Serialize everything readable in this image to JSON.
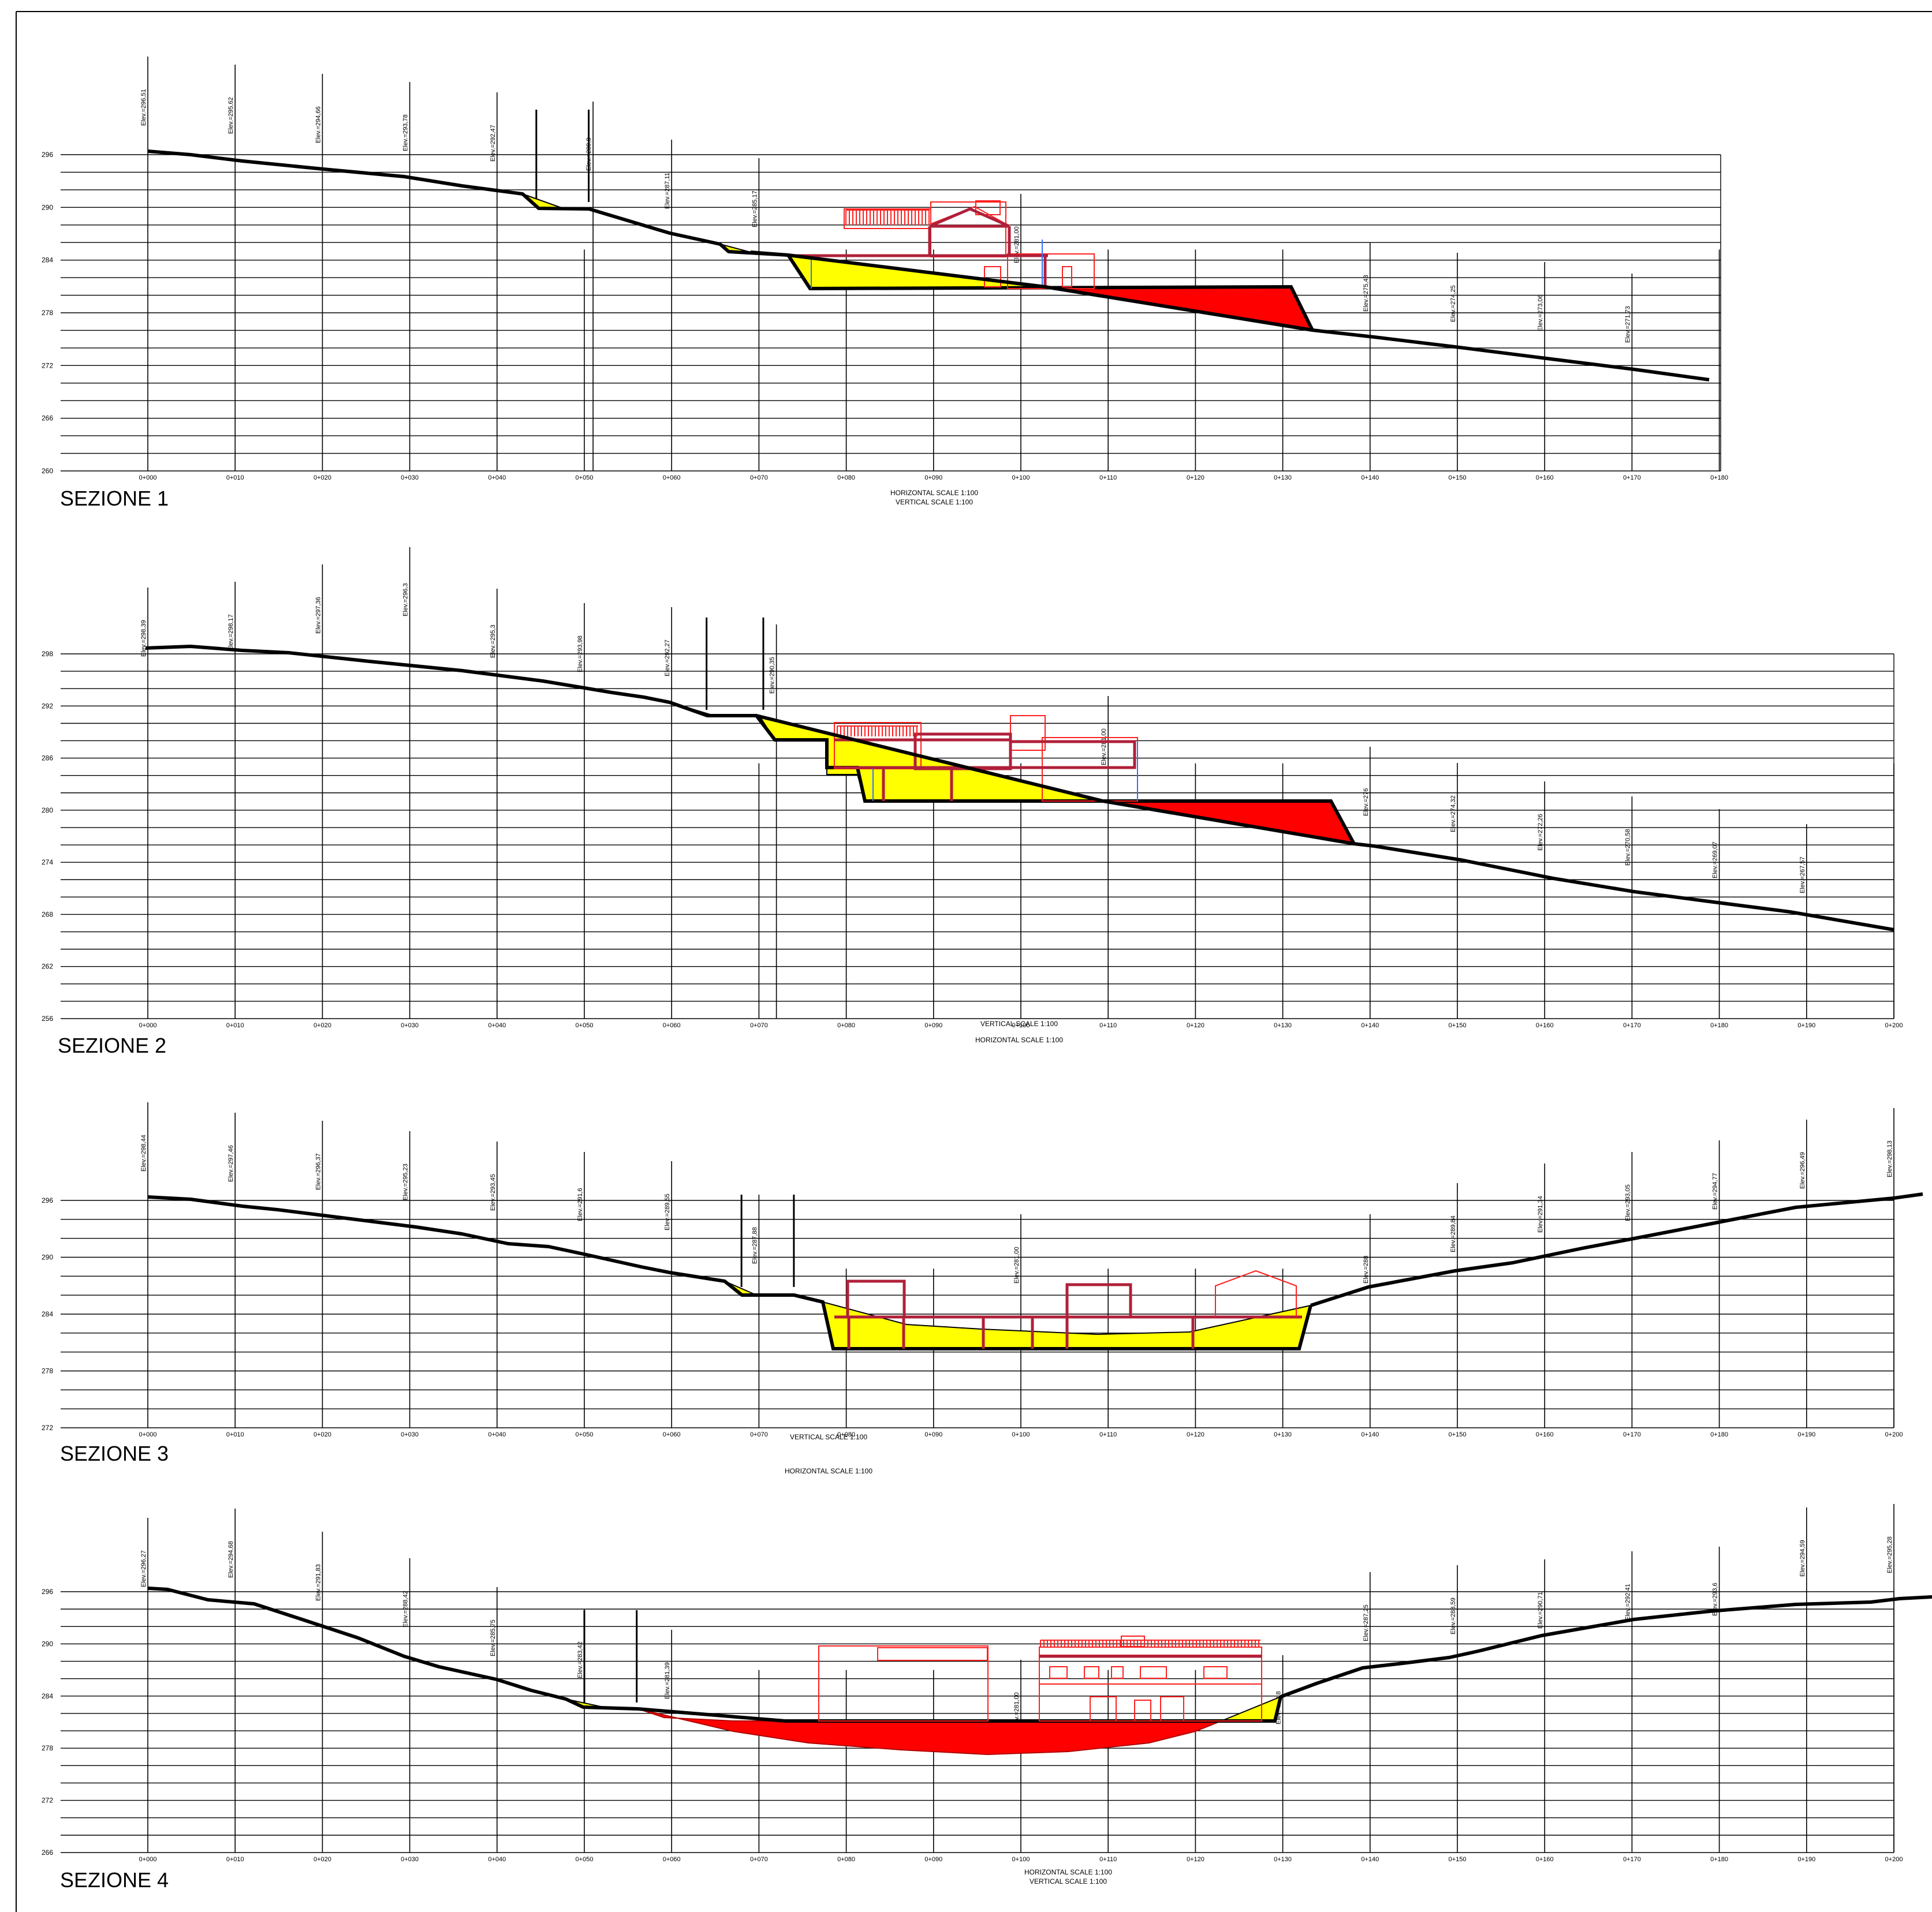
{
  "sections": [
    {
      "title": "SEZIONE 1",
      "y_ticks": [
        "296",
        "290",
        "284",
        "278",
        "272",
        "266",
        "260"
      ],
      "stations": [
        "0+000",
        "0+010",
        "0+020",
        "0+030",
        "0+040",
        "0+050",
        "0+060",
        "0+070",
        "0+080",
        "0+090",
        "0+100",
        "0+110",
        "0+120",
        "0+130",
        "0+140",
        "0+150",
        "0+160",
        "0+170",
        "0+180"
      ],
      "elevation_labels": [
        "Elev.=296,51",
        "Elev.=295,62",
        "Elev.=294,66",
        "Elev.=293,78",
        "Elev.=292,47",
        "Elev.=289,8",
        "Elev.=287,11",
        "Elev.=285,17",
        "Elev.=281,00",
        "Elev.=275,43",
        "Elev.=274,25",
        "Elev.=273,06",
        "Elev.=271,73"
      ],
      "scale_h": "HORIZONTAL SCALE 1:100",
      "scale_v": "VERTICAL SCALE 1:100"
    },
    {
      "title": "SEZIONE 2",
      "y_ticks": [
        "298",
        "292",
        "286",
        "280",
        "274",
        "268",
        "262",
        "256"
      ],
      "stations": [
        "0+000",
        "0+010",
        "0+020",
        "0+030",
        "0+040",
        "0+050",
        "0+060",
        "0+070",
        "0+080",
        "0+090",
        "0+100",
        "0+110",
        "0+120",
        "0+130",
        "0+140",
        "0+150",
        "0+160",
        "0+170",
        "0+180",
        "0+190",
        "0+200"
      ],
      "elevation_labels": [
        "Elev.=298,39",
        "Elev.=298,17",
        "Elev.=297,36",
        "Elev.=296,3",
        "Elev.=295,3",
        "Elev.=293,98",
        "Elev.=292,27",
        "Elev.=290,35",
        "Elev.=281,00",
        "Elev.=276",
        "Elev.=274,32",
        "Elev.=272,26",
        "Elev.=270,58",
        "Elev.=269,07",
        "Elev.=267,57"
      ],
      "scale_v": "VERTICAL SCALE 1:100",
      "scale_h": "HORIZONTAL SCALE 1:100"
    },
    {
      "title": "SEZIONE 3",
      "y_ticks": [
        "296",
        "290",
        "284",
        "278",
        "272"
      ],
      "stations": [
        "0+000",
        "0+010",
        "0+020",
        "0+030",
        "0+040",
        "0+050",
        "0+060",
        "0+070",
        "0+080",
        "0+090",
        "0+100",
        "0+110",
        "0+120",
        "0+130",
        "0+140",
        "0+150",
        "0+160",
        "0+170",
        "0+180",
        "0+190",
        "0+200"
      ],
      "elevation_labels": [
        "Elev.=298,44",
        "Elev.=297,46",
        "Elev.=296,37",
        "Elev.=295,23",
        "Elev.=293,45",
        "Elev.=291,6",
        "Elev.=289,55",
        "Elev.=287,88",
        "Elev.=281,00",
        "Elev.=288",
        "Elev.=289,84",
        "Elev.=291,34",
        "Elev.=293,05",
        "Elev.=294,77",
        "Elev.=296,49",
        "Elev.=298,13"
      ],
      "scale_v": "VERTICAL SCALE 1:100",
      "scale_h": "HORIZONTAL SCALE 1:100"
    },
    {
      "title": "SEZIONE 4",
      "y_ticks": [
        "296",
        "290",
        "284",
        "278",
        "272",
        "266"
      ],
      "stations": [
        "0+000",
        "0+010",
        "0+020",
        "0+030",
        "0+040",
        "0+050",
        "0+060",
        "0+070",
        "0+080",
        "0+090",
        "0+100",
        "0+110",
        "0+120",
        "0+130",
        "0+140",
        "0+150",
        "0+160",
        "0+170",
        "0+180",
        "0+190",
        "0+200"
      ],
      "elevation_labels": [
        "Elev.=296,27",
        "Elev.=294,68",
        "Elev.=291,83",
        "Elev.=288,42",
        "Elev.=285,75",
        "Elev.=283,42",
        "Elev.=281,39",
        "Elev.=281,00",
        "Elev.=283,8",
        "Elev.=287,25",
        "Elev.=288,59",
        "Elev.=290,71",
        "Elev.=292,41",
        "Elev.=293,6",
        "Elev.=294,59",
        "Elev.=295,28"
      ],
      "scale_h": "HORIZONTAL SCALE 1:100",
      "scale_v": "VERTICAL SCALE 1:100"
    }
  ],
  "colors": {
    "cut": "#ff0000",
    "fill": "#ffff00",
    "building": "#ff2020",
    "structure": "#b0203a",
    "line": "#000000"
  }
}
